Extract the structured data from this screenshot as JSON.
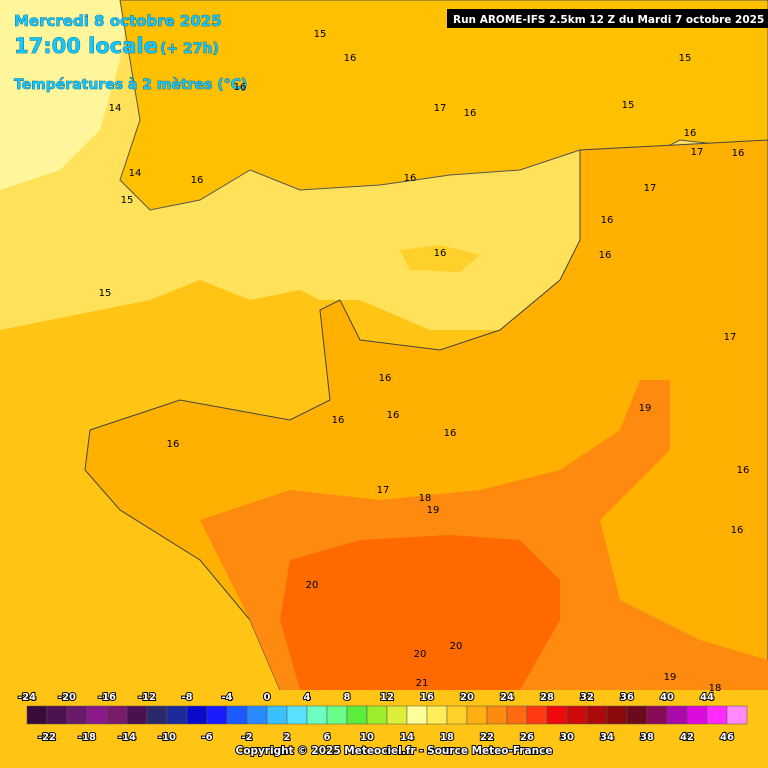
{
  "header": {
    "date": "Mercredi 8 octobre 2025",
    "time": "17:00 locale",
    "lead": "(+ 27h)",
    "title": "Températures à 2 mètres (°C)",
    "run": "Run AROME-IFS 2.5km 12 Z du Mardi 7 octobre 2025"
  },
  "contour_labels": [
    15,
    16,
    15,
    16,
    14,
    17,
    16,
    15,
    16,
    17,
    16,
    14,
    16,
    15,
    16,
    17,
    16,
    16,
    16,
    15,
    17,
    16,
    19,
    16,
    16,
    16,
    16,
    16,
    17,
    18,
    19,
    16,
    20,
    20,
    20,
    21,
    19,
    18
  ],
  "colorbar": {
    "ticks": [
      -24,
      -22,
      -20,
      -18,
      -16,
      -14,
      -12,
      -10,
      -8,
      -6,
      -4,
      -2,
      0,
      2,
      4,
      6,
      8,
      10,
      12,
      14,
      16,
      18,
      20,
      22,
      24,
      26,
      28,
      30,
      32,
      34,
      36,
      38,
      40,
      42,
      44,
      46
    ],
    "colors": [
      "#3a0a3a",
      "#4b1150",
      "#6a1a6a",
      "#8a1a8a",
      "#7a1a6a",
      "#4a1050",
      "#2a2a6a",
      "#1a2a9a",
      "#0a0acc",
      "#1a1aff",
      "#1a5aff",
      "#2a8aff",
      "#3ac0ff",
      "#5ae0ff",
      "#6affc0",
      "#6aff8a",
      "#5aee3a",
      "#9aee2a",
      "#daee3a",
      "#ffff9a",
      "#ffee5a",
      "#ffd02a",
      "#ffb010",
      "#ff8a10",
      "#ff6a10",
      "#ff3a10",
      "#ee0a0a",
      "#cc0a0a",
      "#aa0a0a",
      "#8a0a0a",
      "#6a0a1a",
      "#8a0a5a",
      "#aa0aaa",
      "#dd0add",
      "#ff2aff",
      "#ff8aff"
    ]
  },
  "copyright": "Copyright © 2025 Meteociel.fr - Source Meteo-France"
}
